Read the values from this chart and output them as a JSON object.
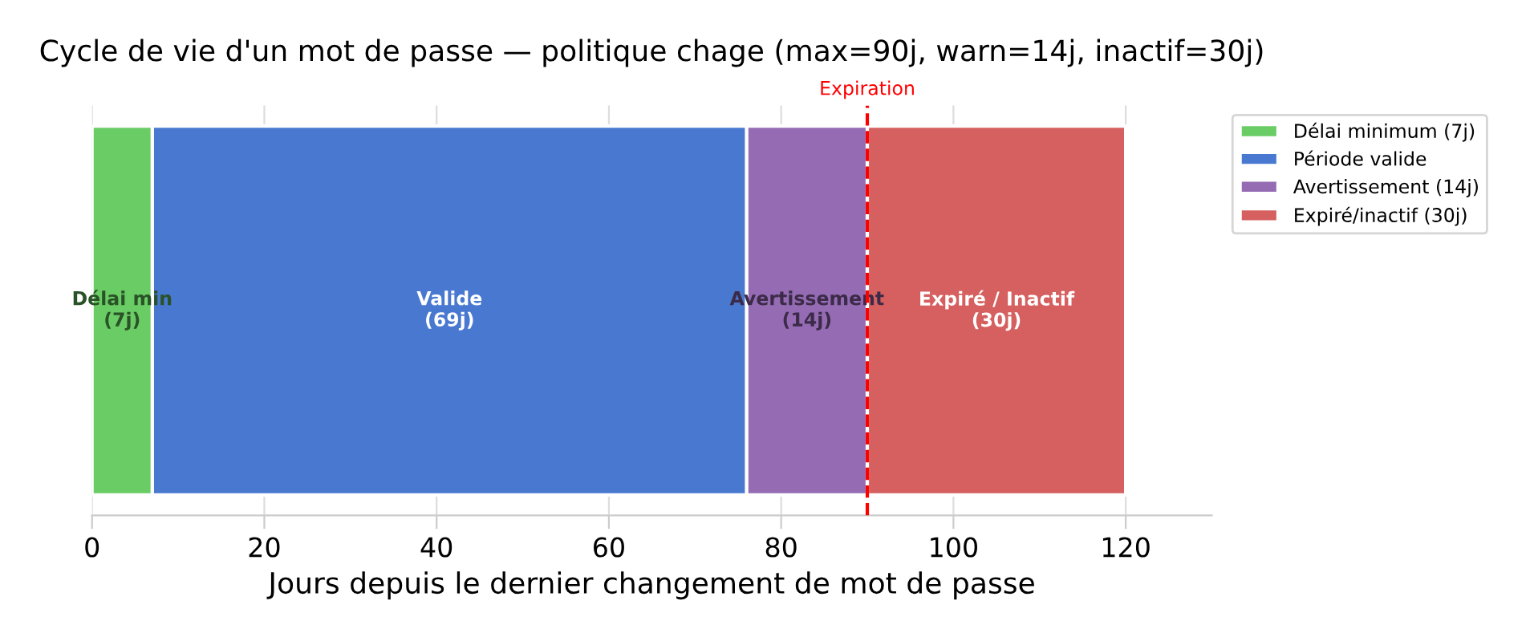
{
  "chart_data": {
    "type": "bar",
    "orientation": "horizontal",
    "stacked": true,
    "title": "Cycle de vie d'un mot de passe — politique chage (max=90j, warn=14j, inactif=30j)",
    "xlabel": "Jours depuis le dernier changement de mot de passe",
    "categories": [
      null
    ],
    "series": [
      {
        "name": "Délai minimum (7j)",
        "color": "#6acc64",
        "values": [
          7
        ],
        "value_labels": [
          "Délai min\n(7j)"
        ]
      },
      {
        "name": "Période valide",
        "color": "#4878d0",
        "values": [
          69
        ],
        "value_labels": [
          "Valide\n(69j)"
        ]
      },
      {
        "name": "Avertissement (14j)",
        "color": "#956cb4",
        "values": [
          14
        ],
        "value_labels": [
          "Avertissement\n(14j)"
        ]
      },
      {
        "name": "Expiré/inactif (30j)",
        "color": "#d65f5f",
        "values": [
          30
        ],
        "value_labels": [
          "Expiré / Inactif\n(30j)"
        ]
      }
    ],
    "xlim": [
      0,
      130
    ],
    "xticks": [
      0,
      20,
      40,
      60,
      80,
      100,
      120
    ],
    "ref_lines": [
      {
        "axis": "x",
        "value": 90,
        "label": "Expiration",
        "color": "#ff0000",
        "line_style": "dashed"
      }
    ],
    "grid": "x",
    "legend": "right",
    "tick_labels": "x"
  }
}
